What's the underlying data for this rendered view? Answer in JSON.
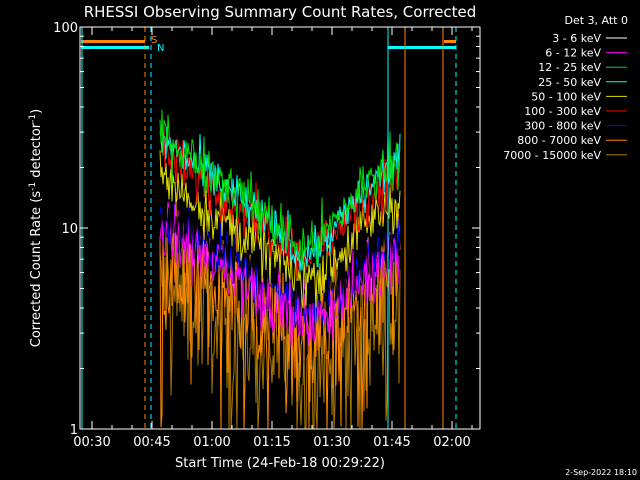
{
  "chart_data": {
    "type": "line",
    "title": "RHESSI Observing Summary Count Rates, Corrected",
    "ylabel_main": "Corrected Count Rate (s",
    "ylabel_sup1": "-1",
    "ylabel_mid": " detector",
    "ylabel_sup2": "-1",
    "ylabel_end": ")",
    "xlabel": "Start Time (24-Feb-18 00:29:22)",
    "footer_date": "2-Sep-2022 18:10",
    "yscale": "log",
    "ylim": [
      1,
      100
    ],
    "xlim_minutes": [
      -3,
      97
    ],
    "y_ticks": [
      {
        "value": 1,
        "label": "1"
      },
      {
        "value": 10,
        "label": "10"
      },
      {
        "value": 100,
        "label": "100"
      }
    ],
    "x_ticks": [
      {
        "minute": 0,
        "label": "00:30"
      },
      {
        "minute": 15,
        "label": "00:45"
      },
      {
        "minute": 30,
        "label": "01:00"
      },
      {
        "minute": 45,
        "label": "01:15"
      },
      {
        "minute": 60,
        "label": "01:30"
      },
      {
        "minute": 75,
        "label": "01:45"
      },
      {
        "minute": 90,
        "label": "02:00"
      }
    ],
    "legend_header": "Det 3, Att 0",
    "series": [
      {
        "name": "3 - 6 keV",
        "color": "#000000",
        "base": 12,
        "dip": 0.48,
        "noise": 0.1
      },
      {
        "name": "6 - 12 keV",
        "color": "#ff00ff",
        "base": 10,
        "dip": 0.42,
        "noise": 0.12
      },
      {
        "name": "12 - 25 keV",
        "color": "#00dd00",
        "base": 30,
        "dip": 0.33,
        "noise": 0.1
      },
      {
        "name": "25 - 50 keV",
        "color": "#00ffff",
        "base": 28,
        "dip": 0.33,
        "noise": 0.08
      },
      {
        "name": "50 - 100 keV",
        "color": "#dddd00",
        "base": 18,
        "dip": 0.38,
        "noise": 0.1
      },
      {
        "name": "100 - 300 keV",
        "color": "#ff0000",
        "base": 24,
        "dip": 0.38,
        "noise": 0.09
      },
      {
        "name": "300 - 800 keV",
        "color": "#0000ff",
        "base": 11,
        "dip": 0.44,
        "noise": 0.09
      },
      {
        "name": "800 - 7000 keV",
        "color": "#ff8800",
        "base": 7,
        "dip": 0.5,
        "noise": 0.22
      },
      {
        "name": "7000 - 15000 keV",
        "color": "#aa7700",
        "base": 5,
        "dip": 0.5,
        "noise": 0.25
      }
    ],
    "data_window_minutes": [
      17,
      77
    ],
    "annotations": [
      {
        "text": "S",
        "color": "#ff8800"
      },
      {
        "text": "N",
        "color": "#00ffff"
      }
    ],
    "saa_color": "#ff8800",
    "night_color": "#00ffff"
  }
}
